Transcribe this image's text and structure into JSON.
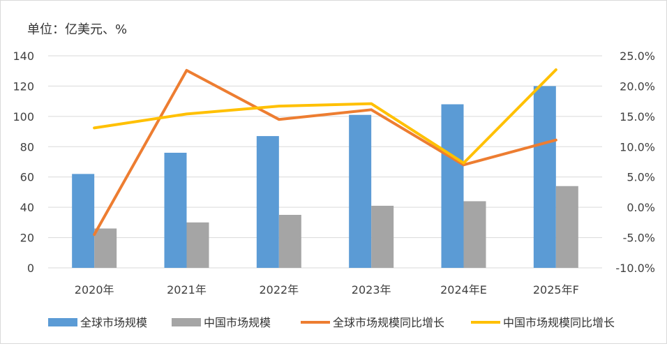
{
  "chart_data": {
    "type": "bar",
    "unit_label": "单位：亿美元、%",
    "categories": [
      "2020年",
      "2021年",
      "2022年",
      "2023年",
      "2024年E",
      "2025年F"
    ],
    "series": [
      {
        "name": "全球市场规模",
        "type": "bar",
        "axis": "left",
        "color": "#5b9bd5",
        "values": [
          62,
          76,
          87,
          101,
          108,
          120
        ]
      },
      {
        "name": "中国市场规模",
        "type": "bar",
        "axis": "left",
        "color": "#a5a5a5",
        "values": [
          26,
          30,
          35,
          41,
          44,
          54
        ]
      },
      {
        "name": "全球市场规模同比增长",
        "type": "line",
        "axis": "right",
        "color": "#ed7d31",
        "values": [
          -4.5,
          22.6,
          14.5,
          16.1,
          7.0,
          11.1
        ]
      },
      {
        "name": "中国市场规模同比增长",
        "type": "line",
        "axis": "right",
        "color": "#ffc000",
        "values": [
          13.1,
          15.4,
          16.7,
          17.1,
          7.3,
          22.7
        ]
      }
    ],
    "y_left": {
      "min": 0,
      "max": 140,
      "step": 20,
      "ticks": [
        "0",
        "20",
        "40",
        "60",
        "80",
        "100",
        "120",
        "140"
      ]
    },
    "y_right": {
      "min": -10,
      "max": 25,
      "step": 5,
      "ticks": [
        "-10.0%",
        "-5.0%",
        "0.0%",
        "5.0%",
        "10.0%",
        "15.0%",
        "20.0%",
        "25.0%"
      ]
    },
    "grid": true,
    "legend_position": "bottom"
  }
}
